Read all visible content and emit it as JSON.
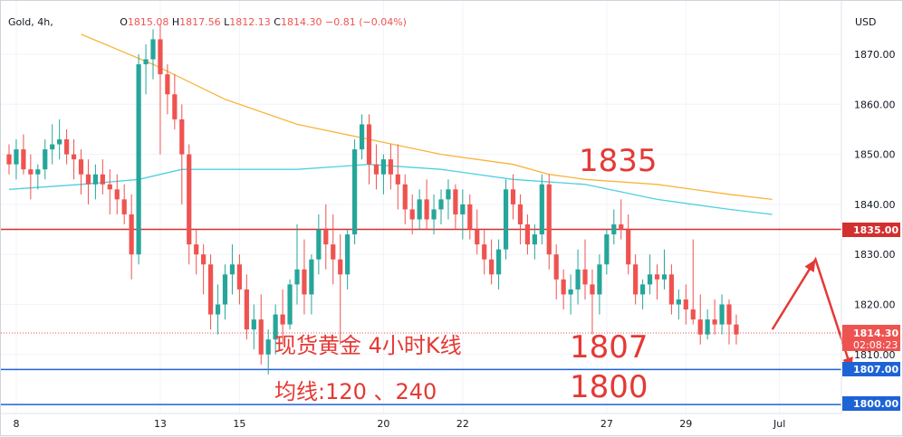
{
  "header": {
    "symbol": "Gold, 4h,",
    "o_label": "O",
    "o_value": "1815.08",
    "h_label": "H",
    "h_value": "1817.56",
    "l_label": "L",
    "l_value": "1812.13",
    "c_label": "C",
    "c_value": "1814.30",
    "change": "−0.81 (−0.04%)"
  },
  "axis": {
    "currency": "USD",
    "y_ticks": [
      "1870.00",
      "1860.00",
      "1850.00",
      "1840.00",
      "1830.00",
      "1820.00",
      "1810.00"
    ],
    "x_ticks": [
      "8",
      "13",
      "15",
      "20",
      "22",
      "27",
      "29",
      "Jul"
    ]
  },
  "price_tags": {
    "level_1835": "1835.00",
    "last_price": "1814.30",
    "countdown": "02:08:23",
    "level_1807": "1807.00",
    "level_1800": "1800.00"
  },
  "annotations": {
    "resistance": "1835",
    "support_1": "1807",
    "support_2": "1800",
    "title": "现货黄金 4小时K线",
    "ma_note": "均线:120 、240"
  },
  "colors": {
    "up": "#26a69a",
    "down": "#ef5350",
    "resistance_line": "#d32f2f",
    "support_line": "#1e63d6",
    "ma_fast": "#4dd0e1",
    "ma_slow": "#f9b43a",
    "annotation_red": "#e53935"
  },
  "chart_data": {
    "type": "candlestick",
    "interval": "4h",
    "ylim": [
      1799,
      1878
    ],
    "y_ticks": [
      1810,
      1820,
      1830,
      1840,
      1850,
      1860,
      1870
    ],
    "x_tick_index": [
      1,
      21,
      32,
      52,
      63,
      83,
      94,
      107
    ],
    "candles": [
      [
        1850,
        1852,
        1846,
        1848
      ],
      [
        1848,
        1853,
        1845,
        1851
      ],
      [
        1851,
        1854,
        1846,
        1847
      ],
      [
        1847,
        1850,
        1841,
        1846
      ],
      [
        1846,
        1848,
        1843,
        1847
      ],
      [
        1847,
        1853,
        1845,
        1851
      ],
      [
        1851,
        1856,
        1848,
        1852
      ],
      [
        1852,
        1857,
        1849,
        1853
      ],
      [
        1853,
        1855,
        1848,
        1850
      ],
      [
        1850,
        1853,
        1845,
        1849
      ],
      [
        1849,
        1851,
        1842,
        1846
      ],
      [
        1846,
        1849,
        1840,
        1844
      ],
      [
        1844,
        1848,
        1841,
        1846
      ],
      [
        1846,
        1849,
        1842,
        1844
      ],
      [
        1844,
        1847,
        1838,
        1843
      ],
      [
        1843,
        1846,
        1838,
        1841
      ],
      [
        1841,
        1844,
        1836,
        1838
      ],
      [
        1838,
        1842,
        1825,
        1830
      ],
      [
        1830,
        1870,
        1828,
        1868
      ],
      [
        1868,
        1872,
        1862,
        1869
      ],
      [
        1869,
        1875,
        1865,
        1873
      ],
      [
        1873,
        1876,
        1850,
        1866
      ],
      [
        1866,
        1868,
        1858,
        1862
      ],
      [
        1862,
        1866,
        1855,
        1857
      ],
      [
        1857,
        1860,
        1840,
        1850
      ],
      [
        1850,
        1852,
        1828,
        1832
      ],
      [
        1832,
        1835,
        1826,
        1830
      ],
      [
        1830,
        1832,
        1822,
        1828
      ],
      [
        1828,
        1830,
        1815,
        1818
      ],
      [
        1818,
        1824,
        1814,
        1820
      ],
      [
        1820,
        1828,
        1817,
        1826
      ],
      [
        1826,
        1832,
        1822,
        1828
      ],
      [
        1828,
        1830,
        1820,
        1823
      ],
      [
        1823,
        1826,
        1813,
        1815
      ],
      [
        1815,
        1820,
        1811,
        1817
      ],
      [
        1817,
        1822,
        1808,
        1810
      ],
      [
        1810,
        1815,
        1806,
        1813
      ],
      [
        1813,
        1820,
        1810,
        1818
      ],
      [
        1818,
        1823,
        1812,
        1816
      ],
      [
        1816,
        1825,
        1815,
        1824
      ],
      [
        1824,
        1836,
        1820,
        1827
      ],
      [
        1827,
        1833,
        1818,
        1822
      ],
      [
        1822,
        1830,
        1818,
        1829
      ],
      [
        1829,
        1838,
        1826,
        1835
      ],
      [
        1835,
        1840,
        1827,
        1832
      ],
      [
        1832,
        1838,
        1824,
        1829
      ],
      [
        1829,
        1834,
        1812,
        1826
      ],
      [
        1826,
        1835,
        1823,
        1834
      ],
      [
        1834,
        1853,
        1832,
        1851
      ],
      [
        1851,
        1858,
        1849,
        1856
      ],
      [
        1856,
        1858,
        1844,
        1848
      ],
      [
        1848,
        1852,
        1843,
        1846
      ],
      [
        1846,
        1850,
        1842,
        1849
      ],
      [
        1849,
        1852,
        1843,
        1846
      ],
      [
        1846,
        1852,
        1839,
        1844
      ],
      [
        1844,
        1846,
        1836,
        1839
      ],
      [
        1839,
        1842,
        1834,
        1837
      ],
      [
        1837,
        1843,
        1835,
        1841
      ],
      [
        1841,
        1845,
        1835,
        1837
      ],
      [
        1837,
        1842,
        1834,
        1839
      ],
      [
        1839,
        1843,
        1836,
        1841
      ],
      [
        1841,
        1845,
        1837,
        1843
      ],
      [
        1843,
        1844,
        1835,
        1838
      ],
      [
        1838,
        1843,
        1833,
        1840
      ],
      [
        1840,
        1842,
        1833,
        1835
      ],
      [
        1835,
        1839,
        1830,
        1832
      ],
      [
        1832,
        1835,
        1826,
        1829
      ],
      [
        1829,
        1833,
        1824,
        1826
      ],
      [
        1826,
        1833,
        1823,
        1831
      ],
      [
        1831,
        1845,
        1829,
        1843
      ],
      [
        1843,
        1846,
        1837,
        1840
      ],
      [
        1840,
        1842,
        1832,
        1836
      ],
      [
        1836,
        1838,
        1830,
        1832
      ],
      [
        1832,
        1836,
        1829,
        1834
      ],
      [
        1834,
        1846,
        1832,
        1844
      ],
      [
        1844,
        1846,
        1827,
        1830
      ],
      [
        1830,
        1832,
        1821,
        1825
      ],
      [
        1825,
        1827,
        1819,
        1822
      ],
      [
        1822,
        1826,
        1818,
        1823
      ],
      [
        1823,
        1831,
        1820,
        1827
      ],
      [
        1827,
        1833,
        1821,
        1824
      ],
      [
        1824,
        1827,
        1814,
        1822
      ],
      [
        1822,
        1830,
        1818,
        1828
      ],
      [
        1828,
        1835,
        1826,
        1834
      ],
      [
        1834,
        1839,
        1832,
        1836
      ],
      [
        1836,
        1841,
        1833,
        1835
      ],
      [
        1835,
        1838,
        1826,
        1828
      ],
      [
        1828,
        1830,
        1820,
        1822
      ],
      [
        1822,
        1825,
        1819,
        1824
      ],
      [
        1824,
        1830,
        1822,
        1826
      ],
      [
        1826,
        1828,
        1821,
        1825
      ],
      [
        1825,
        1831,
        1823,
        1826
      ],
      [
        1826,
        1828,
        1818,
        1820
      ],
      [
        1820,
        1823,
        1817,
        1821
      ],
      [
        1821,
        1824,
        1816,
        1819
      ],
      [
        1819,
        1833,
        1816,
        1817
      ],
      [
        1817,
        1822,
        1812,
        1814
      ],
      [
        1814,
        1819,
        1813,
        1817
      ],
      [
        1817,
        1821,
        1814,
        1816
      ],
      [
        1816,
        1822,
        1814,
        1820
      ],
      [
        1820,
        1821,
        1812,
        1816
      ],
      [
        1816,
        1818,
        1812,
        1814
      ]
    ],
    "ma_fast": [
      [
        0,
        1843
      ],
      [
        10,
        1844
      ],
      [
        18,
        1845
      ],
      [
        24,
        1847
      ],
      [
        32,
        1847
      ],
      [
        40,
        1847
      ],
      [
        50,
        1848
      ],
      [
        60,
        1847
      ],
      [
        70,
        1845
      ],
      [
        80,
        1844
      ],
      [
        90,
        1841
      ],
      [
        100,
        1839
      ],
      [
        106,
        1838
      ]
    ],
    "ma_slow": [
      [
        10,
        1874
      ],
      [
        20,
        1868
      ],
      [
        30,
        1861
      ],
      [
        40,
        1856
      ],
      [
        50,
        1853
      ],
      [
        60,
        1850
      ],
      [
        70,
        1848
      ],
      [
        75,
        1846
      ],
      [
        80,
        1845
      ],
      [
        90,
        1844
      ],
      [
        100,
        1842
      ],
      [
        106,
        1841
      ]
    ],
    "levels": [
      1835,
      1807,
      1800
    ],
    "last_price": 1814.3,
    "projection": [
      [
        106,
        1815
      ],
      [
        112,
        1829
      ],
      [
        117,
        1807
      ]
    ]
  }
}
